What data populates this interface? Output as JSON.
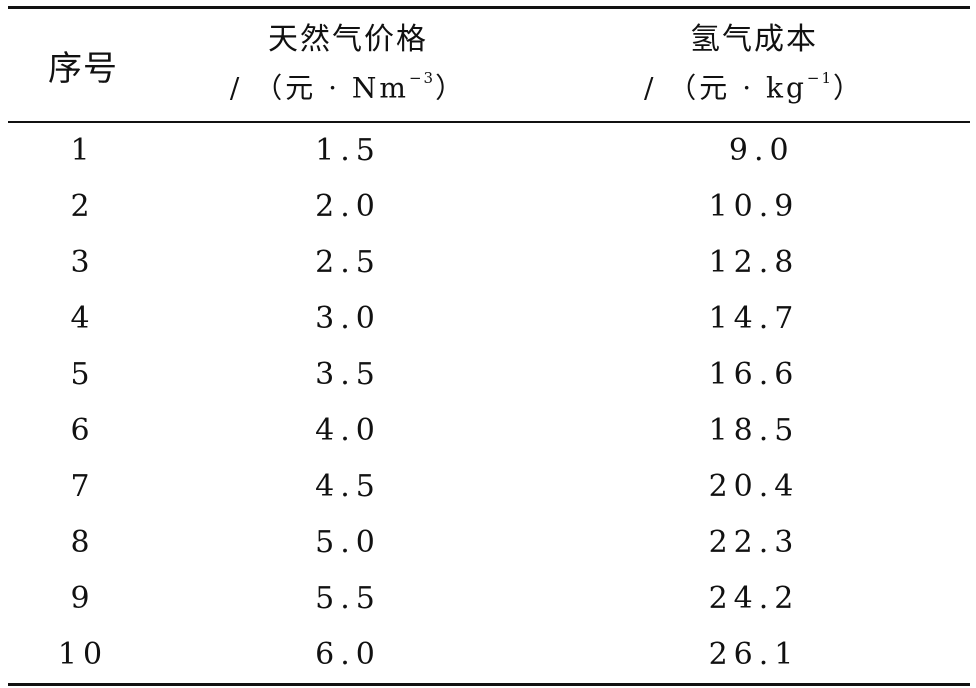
{
  "table": {
    "headers": {
      "col1": "序号",
      "col2_line1": "天然气价格",
      "col2_line2": "/ （元 · Nm",
      "col2_sup": "−3",
      "col2_close": "）",
      "col3_line1": "氢气成本",
      "col3_line2": "/ （元 · kg",
      "col3_sup": "−1",
      "col3_close": "）"
    },
    "rows": [
      {
        "no": "1",
        "gas_price": "1.5",
        "h2_cost": " 9.0"
      },
      {
        "no": "2",
        "gas_price": "2.0",
        "h2_cost": "10.9"
      },
      {
        "no": "3",
        "gas_price": "2.5",
        "h2_cost": "12.8"
      },
      {
        "no": "4",
        "gas_price": "3.0",
        "h2_cost": "14.7"
      },
      {
        "no": "5",
        "gas_price": "3.5",
        "h2_cost": "16.6"
      },
      {
        "no": "6",
        "gas_price": "4.0",
        "h2_cost": "18.5"
      },
      {
        "no": "7",
        "gas_price": "4.5",
        "h2_cost": "20.4"
      },
      {
        "no": "8",
        "gas_price": "5.0",
        "h2_cost": "22.3"
      },
      {
        "no": "9",
        "gas_price": "5.5",
        "h2_cost": "24.2"
      },
      {
        "no": "10",
        "gas_price": "6.0",
        "h2_cost": "26.1"
      }
    ]
  }
}
